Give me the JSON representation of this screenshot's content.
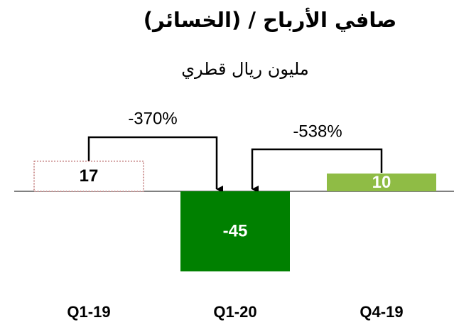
{
  "chart_data": {
    "type": "bar",
    "title": "صافي الأرباح / (الخسائر)",
    "subtitle": "مليون ريال قطري",
    "categories": [
      "Q1-19",
      "Q1-20",
      "Q4-19"
    ],
    "values": [
      17,
      -45,
      10
    ],
    "colors": [
      "#ffffff",
      "#008000",
      "#8fbc45"
    ],
    "annotations": [
      {
        "text": "-370%"
      },
      {
        "text": "-538%"
      }
    ]
  }
}
